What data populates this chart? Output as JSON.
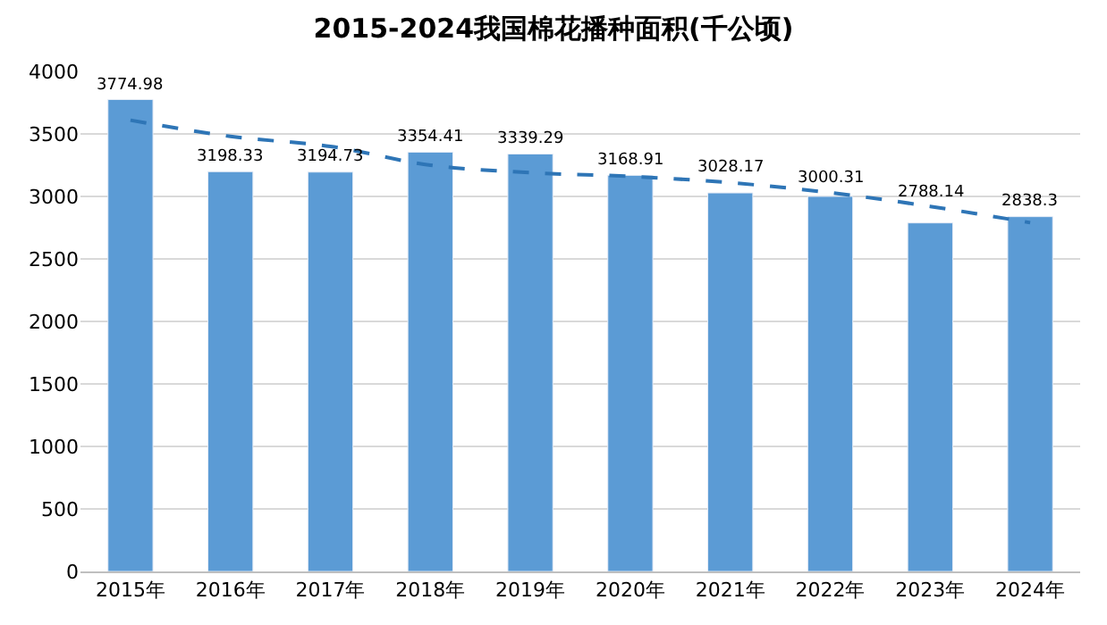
{
  "chart_data": {
    "type": "bar",
    "title": "2015-2024我国棉花播种面积(千公顷)",
    "categories": [
      "2015年",
      "2016年",
      "2017年",
      "2018年",
      "2019年",
      "2020年",
      "2021年",
      "2022年",
      "2023年",
      "2024年"
    ],
    "series": [
      {
        "color": "#5b9bd5",
        "values": [
          3774.98,
          3198.33,
          3194.73,
          3354.41,
          3339.29,
          3168.91,
          3028.17,
          3000.31,
          2788.14,
          2838.3
        ],
        "value_labels": [
          "3774.98",
          "3198.33",
          "3194.73",
          "3354.41",
          "3339.29",
          "3168.91",
          "3028.17",
          "3000.31",
          "2788.14",
          "2838.3"
        ]
      },
      {
        "type": "line",
        "color": "#2e75b6",
        "line_style": "dashed",
        "marker": "none",
        "values": [
          3610,
          3480,
          3400,
          3250,
          3190,
          3160,
          3110,
          3030,
          2920,
          2790
        ]
      }
    ],
    "ylim": [
      0,
      4000
    ],
    "yticks": [
      0,
      500,
      1000,
      1500,
      2000,
      2500,
      3000,
      3500,
      4000
    ],
    "grid": "y"
  }
}
